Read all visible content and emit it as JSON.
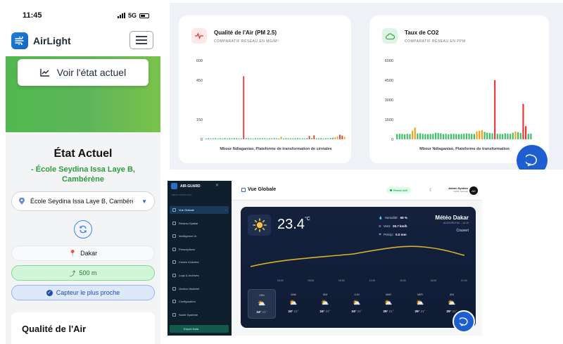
{
  "phone": {
    "status": {
      "time": "11:45",
      "network": "5G"
    },
    "brand": "AirLight",
    "view_button": "Voir l'état actuel",
    "etat_title": "État Actuel",
    "school_line1": "- École Seydina Issa Laye B,",
    "school_line2": "Cambérène",
    "select_value": "École Seydina Issa Laye B, Cambérène",
    "city": "Dakar",
    "distance": "500 m",
    "nearest": "Capteur le plus proche",
    "quality_title": "Qualité de l'Air"
  },
  "charts": [
    {
      "title": "Qualité de l'Air (PM 2.5)",
      "subtitle": "COMPARATIF RÉSEAU EN MG/M³",
      "xlabel": "Mbour Ndiaganiao, Plateforme de transformation de céréales",
      "chart_data": {
        "type": "bar",
        "ylim": [
          0,
          600
        ],
        "yticks": [
          "0",
          "150",
          "450",
          "600"
        ],
        "values": [
          5,
          8,
          6,
          7,
          9,
          6,
          8,
          7,
          10,
          6,
          8,
          7,
          9,
          8,
          6,
          7,
          480,
          9,
          8,
          7,
          6,
          8,
          7,
          9,
          8,
          7,
          6,
          8,
          7,
          9,
          8,
          6,
          20,
          7,
          9,
          8,
          7,
          6,
          8,
          9,
          7,
          8,
          6,
          9,
          25,
          10,
          30,
          8,
          7,
          9,
          6,
          8,
          7,
          10,
          12,
          15,
          22,
          35,
          28,
          18
        ]
      }
    },
    {
      "title": "Taux de CO2",
      "subtitle": "COMPARATIF RÉSEAU EN PPM",
      "xlabel": "Mbour Ndiaganiao, Plateforme de transformation",
      "chart_data": {
        "type": "bar",
        "ylim": [
          0,
          6000
        ],
        "yticks": [
          "0",
          "1500",
          "3000",
          "4500",
          "6000"
        ],
        "values": [
          400,
          420,
          410,
          380,
          420,
          400,
          650,
          900,
          440,
          460,
          420,
          400,
          380,
          410,
          420,
          500,
          480,
          460,
          400,
          420,
          380,
          410,
          420,
          400,
          390,
          410,
          420,
          450,
          430,
          410,
          400,
          600,
          650,
          700,
          560,
          500,
          480,
          460,
          4500,
          420,
          410,
          400,
          450,
          430,
          420,
          500,
          600,
          550,
          480,
          2700,
          1000,
          420,
          440
        ]
      }
    }
  ],
  "dashboard": {
    "app": "AIR-GUARD",
    "section": "MENU PRINCIPAL",
    "nav": [
      "Vue Globale",
      "Réseau Spatial",
      "Intelligence IA",
      "Prescriptions",
      "Centre d'Alertes",
      "Logs & Archives",
      "Gestion Matériel",
      "Configuration",
      "Santé Système"
    ],
    "export": "Export Data",
    "header_title": "Vue Globale",
    "network_badge": "Réseau Actif",
    "admin_name": "Admin System",
    "admin_place": "Dakar, Sénégal",
    "admin_initials": "AD",
    "weather": {
      "temp": "23.4",
      "unit": "°C",
      "title": "Météo Dakar",
      "updated": "AUJOURD'HUI – 10:19",
      "condition": "Couvert",
      "humidity_label": "Humidité:",
      "humidity": "68 %",
      "wind_label": "Vent:",
      "wind": "26.7 km/h",
      "precip_label": "Précip:",
      "precip": "0.0 mm",
      "hours": [
        "03:00",
        "06:00",
        "09:00",
        "12:00",
        "15:00",
        "18:00",
        "21:00"
      ],
      "days": [
        {
          "name": "VEN",
          "max": "24°",
          "min": "21°"
        },
        {
          "name": "SAM",
          "max": "24°",
          "min": "21°"
        },
        {
          "name": "DIM",
          "max": "24°",
          "min": "21°"
        },
        {
          "name": "LUN",
          "max": "24°",
          "min": "21°"
        },
        {
          "name": "MAR",
          "max": "25°",
          "min": "21°"
        },
        {
          "name": "MER",
          "max": "25°",
          "min": "21°"
        },
        {
          "name": "JEU",
          "max": "25°",
          "min": "21°"
        }
      ]
    }
  },
  "colors": {
    "green": "#2e9b3e",
    "red": "#e53935",
    "orange": "#f4a21b",
    "barGreen": "#3fbf6a",
    "blue": "#1d5fd0"
  }
}
